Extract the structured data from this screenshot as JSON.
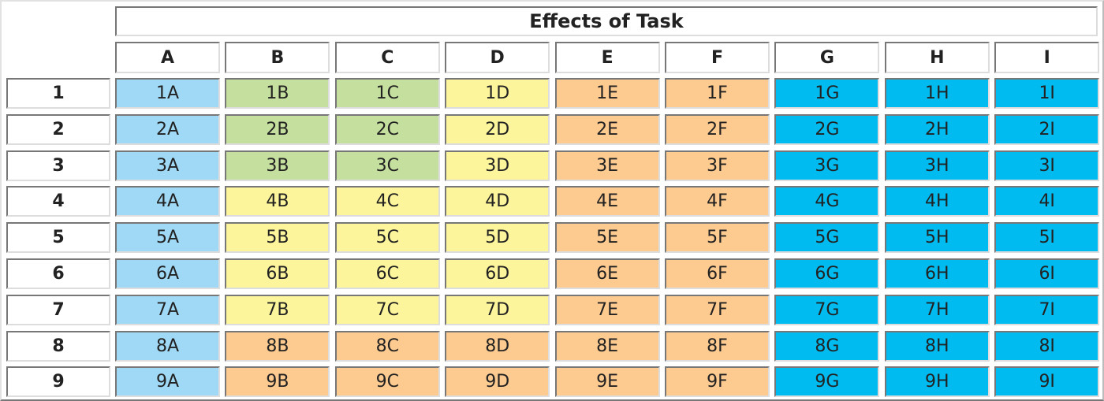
{
  "title": "Effects of Task",
  "columns": [
    "A",
    "B",
    "C",
    "D",
    "E",
    "F",
    "G",
    "H",
    "I"
  ],
  "rows": [
    "1",
    "2",
    "3",
    "4",
    "5",
    "6",
    "7",
    "8",
    "9"
  ],
  "colors": {
    "light-blue": "#a0d9f6",
    "green": "#c5df9e",
    "yellow": "#fdf59b",
    "orange": "#fdca8f",
    "cyan": "#00bbf0"
  },
  "cells": [
    [
      {
        "label": "1A",
        "color": "light-blue"
      },
      {
        "label": "1B",
        "color": "green"
      },
      {
        "label": "1C",
        "color": "green"
      },
      {
        "label": "1D",
        "color": "yellow"
      },
      {
        "label": "1E",
        "color": "orange"
      },
      {
        "label": "1F",
        "color": "orange"
      },
      {
        "label": "1G",
        "color": "cyan"
      },
      {
        "label": "1H",
        "color": "cyan"
      },
      {
        "label": "1I",
        "color": "cyan"
      }
    ],
    [
      {
        "label": "2A",
        "color": "light-blue"
      },
      {
        "label": "2B",
        "color": "green"
      },
      {
        "label": "2C",
        "color": "green"
      },
      {
        "label": "2D",
        "color": "yellow"
      },
      {
        "label": "2E",
        "color": "orange"
      },
      {
        "label": "2F",
        "color": "orange"
      },
      {
        "label": "2G",
        "color": "cyan"
      },
      {
        "label": "2H",
        "color": "cyan"
      },
      {
        "label": "2I",
        "color": "cyan"
      }
    ],
    [
      {
        "label": "3A",
        "color": "light-blue"
      },
      {
        "label": "3B",
        "color": "green"
      },
      {
        "label": "3C",
        "color": "green"
      },
      {
        "label": "3D",
        "color": "yellow"
      },
      {
        "label": "3E",
        "color": "orange"
      },
      {
        "label": "3F",
        "color": "orange"
      },
      {
        "label": "3G",
        "color": "cyan"
      },
      {
        "label": "3H",
        "color": "cyan"
      },
      {
        "label": "3I",
        "color": "cyan"
      }
    ],
    [
      {
        "label": "4A",
        "color": "light-blue"
      },
      {
        "label": "4B",
        "color": "yellow"
      },
      {
        "label": "4C",
        "color": "yellow"
      },
      {
        "label": "4D",
        "color": "yellow"
      },
      {
        "label": "4E",
        "color": "orange"
      },
      {
        "label": "4F",
        "color": "orange"
      },
      {
        "label": "4G",
        "color": "cyan"
      },
      {
        "label": "4H",
        "color": "cyan"
      },
      {
        "label": "4I",
        "color": "cyan"
      }
    ],
    [
      {
        "label": "5A",
        "color": "light-blue"
      },
      {
        "label": "5B",
        "color": "yellow"
      },
      {
        "label": "5C",
        "color": "yellow"
      },
      {
        "label": "5D",
        "color": "yellow"
      },
      {
        "label": "5E",
        "color": "orange"
      },
      {
        "label": "5F",
        "color": "orange"
      },
      {
        "label": "5G",
        "color": "cyan"
      },
      {
        "label": "5H",
        "color": "cyan"
      },
      {
        "label": "5I",
        "color": "cyan"
      }
    ],
    [
      {
        "label": "6A",
        "color": "light-blue"
      },
      {
        "label": "6B",
        "color": "yellow"
      },
      {
        "label": "6C",
        "color": "yellow"
      },
      {
        "label": "6D",
        "color": "yellow"
      },
      {
        "label": "6E",
        "color": "orange"
      },
      {
        "label": "6F",
        "color": "orange"
      },
      {
        "label": "6G",
        "color": "cyan"
      },
      {
        "label": "6H",
        "color": "cyan"
      },
      {
        "label": "6I",
        "color": "cyan"
      }
    ],
    [
      {
        "label": "7A",
        "color": "light-blue"
      },
      {
        "label": "7B",
        "color": "yellow"
      },
      {
        "label": "7C",
        "color": "yellow"
      },
      {
        "label": "7D",
        "color": "yellow"
      },
      {
        "label": "7E",
        "color": "orange"
      },
      {
        "label": "7F",
        "color": "orange"
      },
      {
        "label": "7G",
        "color": "cyan"
      },
      {
        "label": "7H",
        "color": "cyan"
      },
      {
        "label": "7I",
        "color": "cyan"
      }
    ],
    [
      {
        "label": "8A",
        "color": "light-blue"
      },
      {
        "label": "8B",
        "color": "orange"
      },
      {
        "label": "8C",
        "color": "orange"
      },
      {
        "label": "8D",
        "color": "orange"
      },
      {
        "label": "8E",
        "color": "orange"
      },
      {
        "label": "8F",
        "color": "orange"
      },
      {
        "label": "8G",
        "color": "cyan"
      },
      {
        "label": "8H",
        "color": "cyan"
      },
      {
        "label": "8I",
        "color": "cyan"
      }
    ],
    [
      {
        "label": "9A",
        "color": "light-blue"
      },
      {
        "label": "9B",
        "color": "orange"
      },
      {
        "label": "9C",
        "color": "orange"
      },
      {
        "label": "9D",
        "color": "orange"
      },
      {
        "label": "9E",
        "color": "orange"
      },
      {
        "label": "9F",
        "color": "orange"
      },
      {
        "label": "9G",
        "color": "cyan"
      },
      {
        "label": "9H",
        "color": "cyan"
      },
      {
        "label": "9I",
        "color": "cyan"
      }
    ]
  ]
}
